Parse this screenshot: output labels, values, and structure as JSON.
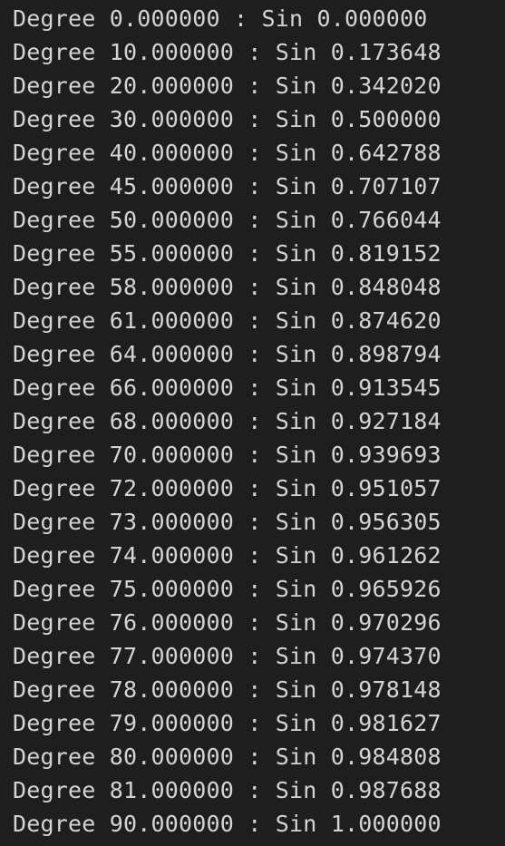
{
  "terminal": {
    "lines": [
      "Degree 0.000000 : Sin 0.000000",
      "Degree 10.000000 : Sin 0.173648",
      "Degree 20.000000 : Sin 0.342020",
      "Degree 30.000000 : Sin 0.500000",
      "Degree 40.000000 : Sin 0.642788",
      "Degree 45.000000 : Sin 0.707107",
      "Degree 50.000000 : Sin 0.766044",
      "Degree 55.000000 : Sin 0.819152",
      "Degree 58.000000 : Sin 0.848048",
      "Degree 61.000000 : Sin 0.874620",
      "Degree 64.000000 : Sin 0.898794",
      "Degree 66.000000 : Sin 0.913545",
      "Degree 68.000000 : Sin 0.927184",
      "Degree 70.000000 : Sin 0.939693",
      "Degree 72.000000 : Sin 0.951057",
      "Degree 73.000000 : Sin 0.956305",
      "Degree 74.000000 : Sin 0.961262",
      "Degree 75.000000 : Sin 0.965926",
      "Degree 76.000000 : Sin 0.970296",
      "Degree 77.000000 : Sin 0.974370",
      "Degree 78.000000 : Sin 0.978148",
      "Degree 79.000000 : Sin 0.981627",
      "Degree 80.000000 : Sin 0.984808",
      "Degree 81.000000 : Sin 0.987688",
      "Degree 90.000000 : Sin 1.000000"
    ]
  },
  "colors": {
    "background": "#1e1e1e",
    "text": "#d4d4d4"
  }
}
